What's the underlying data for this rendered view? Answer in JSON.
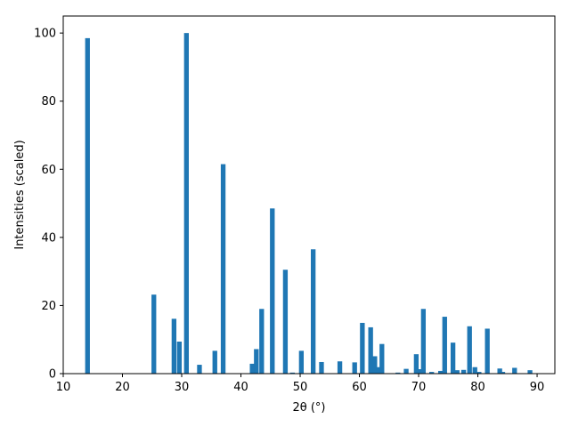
{
  "chart_data": {
    "type": "bar",
    "xlabel": "2θ (°)",
    "ylabel": "Intensities (scaled)",
    "xlim": [
      10,
      93
    ],
    "ylim": [
      0,
      105
    ],
    "xticks": [
      10,
      20,
      30,
      40,
      50,
      60,
      70,
      80,
      90
    ],
    "yticks": [
      0,
      20,
      40,
      60,
      80,
      100
    ],
    "grid": false,
    "bar_color": "#1f77b4",
    "bar_width": 0.8,
    "x": [
      14.1,
      25.3,
      28.7,
      29.6,
      30.8,
      33.0,
      35.6,
      37.0,
      41.9,
      42.6,
      43.5,
      45.3,
      47.5,
      48.7,
      50.2,
      52.2,
      53.6,
      56.7,
      59.2,
      60.5,
      61.9,
      62.6,
      63.3,
      63.8,
      66.5,
      67.9,
      69.6,
      70.2,
      70.8,
      72.2,
      73.7,
      74.4,
      75.8,
      76.5,
      77.6,
      78.6,
      79.5,
      80.2,
      81.6,
      83.7,
      84.2,
      86.2,
      88.8
    ],
    "values": [
      98.5,
      23.2,
      16.1,
      9.4,
      100.0,
      2.6,
      6.7,
      61.5,
      2.9,
      7.2,
      19.0,
      48.5,
      30.5,
      0.3,
      6.7,
      36.5,
      3.4,
      3.6,
      3.3,
      14.9,
      13.6,
      5.1,
      1.9,
      8.7,
      0.3,
      1.4,
      5.7,
      1.3,
      19.0,
      0.5,
      0.8,
      16.7,
      9.1,
      1.0,
      1.1,
      13.9,
      1.9,
      0.5,
      13.2,
      1.5,
      0.5,
      1.7,
      1.0
    ]
  }
}
